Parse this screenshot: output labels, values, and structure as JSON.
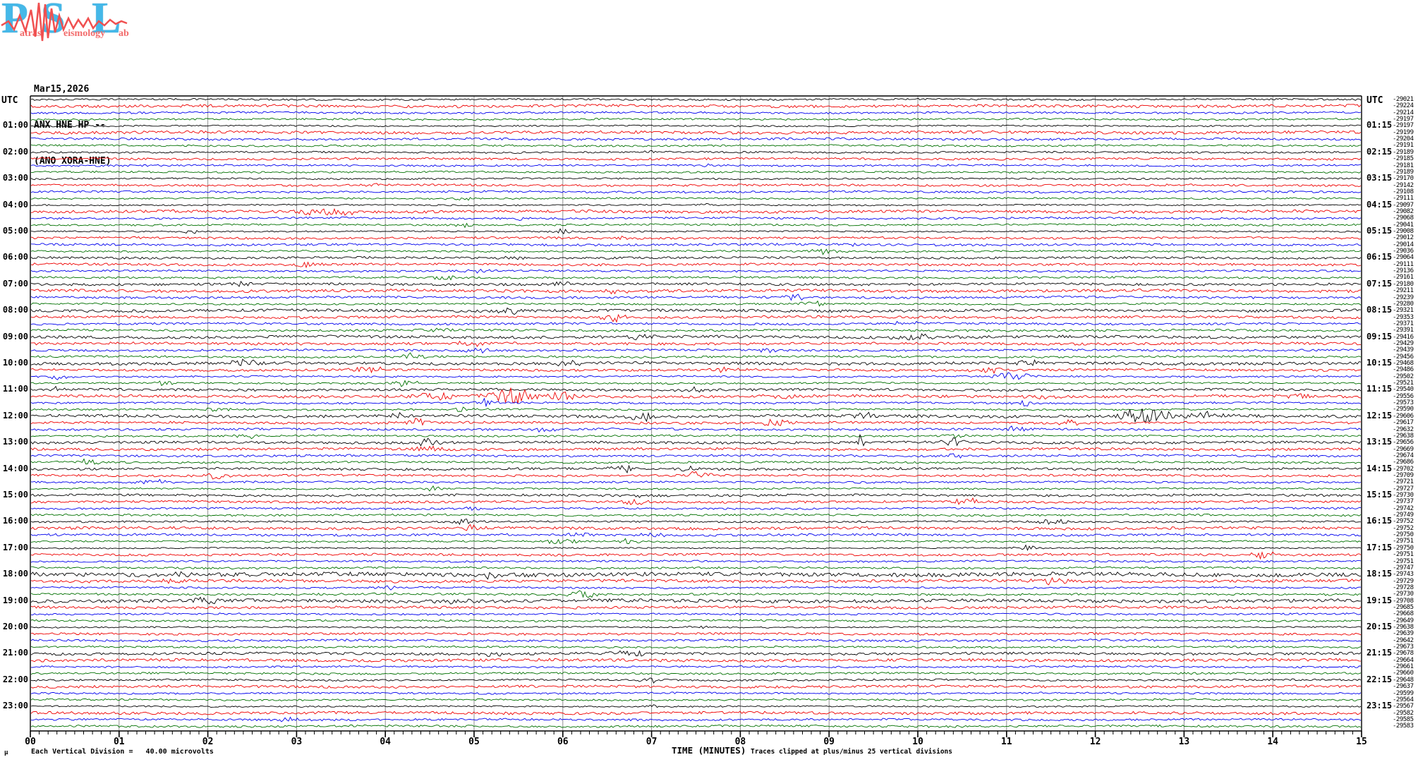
{
  "logo": {
    "letters": [
      "P",
      "S",
      "L"
    ],
    "word_fragments": [
      "atras",
      "eismology",
      "ab"
    ],
    "letter_color": "#45b8e8",
    "word_color": "#f26b6b",
    "trace_color": "#f05050"
  },
  "header": {
    "date": "Mar15,2026",
    "station_line": "ANX HNE HP --",
    "location_line": "(ANO XORA-HNE)",
    "utc_left": "UTC",
    "utc_right": "UTC"
  },
  "footer": {
    "micro_symbol": "µ",
    "scale_note": "Each Vertical Division =   40.00 microvolts",
    "axis_title": "TIME (MINUTES)",
    "clip_note": "Traces clipped at plus/minus 25 vertical divisions"
  },
  "chart_data": {
    "type": "line",
    "subtype": "helicorder-seismogram",
    "title": "ANX HNE HP -- (ANO XORA-HNE) Mar15,2026",
    "xlabel": "TIME (MINUTES)",
    "x_ticks": [
      "00",
      "01",
      "02",
      "03",
      "04",
      "05",
      "06",
      "07",
      "08",
      "09",
      "10",
      "11",
      "12",
      "13",
      "14",
      "15"
    ],
    "x_range_minutes": [
      0,
      15
    ],
    "minutes_per_row": 15,
    "rows": 96,
    "rows_per_hour": 4,
    "start_time": "00:00",
    "trace_color_cycle": [
      "#000000",
      "#ee0000",
      "#0000ee",
      "#007000"
    ],
    "grid_color": "#909090",
    "microvolts_per_division": 40.0,
    "clip_divisions": 25,
    "left_hour_labels": [
      "01:00",
      "02:00",
      "03:00",
      "04:00",
      "05:00",
      "06:00",
      "07:00",
      "08:00",
      "09:00",
      "10:00",
      "11:00",
      "12:00",
      "13:00",
      "14:00",
      "15:00",
      "16:00",
      "17:00",
      "18:00",
      "19:00",
      "20:00",
      "21:00",
      "22:00",
      "23:00"
    ],
    "right_hour_labels": [
      "01:15",
      "02:15",
      "03:15",
      "04:15",
      "05:15",
      "06:15",
      "07:15",
      "08:15",
      "09:15",
      "10:15",
      "11:15",
      "12:15",
      "13:15",
      "14:15",
      "15:15",
      "16:15",
      "17:15",
      "18:15",
      "19:15",
      "20:15",
      "21:15",
      "22:15",
      "23:15"
    ],
    "row_mean_values": [
      -29021,
      -29224,
      -29214,
      -29197,
      -29197,
      -29199,
      -29204,
      -29191,
      -29189,
      -29185,
      -29181,
      -29189,
      -29170,
      -29142,
      -29108,
      -29111,
      -29097,
      -29082,
      -29068,
      -29041,
      -29008,
      -29012,
      -29014,
      -29036,
      -29064,
      -29111,
      -29136,
      -29161,
      -29180,
      -29211,
      -29239,
      -29280,
      -29321,
      -29353,
      -29371,
      -29391,
      -29416,
      -29429,
      -29439,
      -29456,
      -29468,
      -29486,
      -29502,
      -29521,
      -29540,
      -29556,
      -29573,
      -29590,
      -29606,
      -29617,
      -29632,
      -29638,
      -29656,
      -29669,
      -29674,
      -29686,
      -29702,
      -29709,
      -29721,
      -29727,
      -29730,
      -29737,
      -29742,
      -29749,
      -29752,
      -29752,
      -29750,
      -29751,
      -29750,
      -29751,
      -29751,
      -29747,
      -29743,
      -29729,
      -29728,
      -29730,
      -29708,
      -29685,
      -29668,
      -29649,
      -29638,
      -29639,
      -29642,
      -29673,
      -29678,
      -29664,
      -29661,
      -29660,
      -29648,
      -29637,
      -29599,
      -29564,
      -29567,
      -29582,
      -29585,
      -29583
    ],
    "base_noise_amp_by_color": [
      1.1,
      1.7,
      1.4,
      1.3
    ],
    "noisy_rows": [
      [
        24,
        1.6
      ],
      [
        28,
        1.6
      ],
      [
        32,
        1.7
      ],
      [
        36,
        1.8
      ],
      [
        40,
        1.9
      ],
      [
        44,
        1.9
      ],
      [
        48,
        1.9
      ],
      [
        52,
        1.8
      ],
      [
        56,
        1.7
      ],
      [
        60,
        1.6
      ],
      [
        72,
        2.5
      ],
      [
        73,
        1.9
      ],
      [
        76,
        2.1
      ],
      [
        84,
        1.6
      ],
      [
        88,
        1.5
      ]
    ],
    "events": [
      [
        8,
        7.0,
        2.5,
        0.15
      ],
      [
        10,
        7.65,
        2.5,
        0.12
      ],
      [
        13,
        3.85,
        3.5,
        0.12
      ],
      [
        15,
        4.85,
        3.0,
        0.2
      ],
      [
        16,
        7.65,
        2.5,
        0.18
      ],
      [
        17,
        3.2,
        4.0,
        0.45
      ],
      [
        17,
        3.55,
        3.5,
        0.25
      ],
      [
        18,
        5.5,
        3.0,
        0.15
      ],
      [
        19,
        4.9,
        2.5,
        0.2
      ],
      [
        20,
        1.8,
        2.5,
        0.18
      ],
      [
        20,
        6.0,
        4.0,
        0.15
      ],
      [
        21,
        6.7,
        3.5,
        0.12
      ],
      [
        22,
        9.3,
        3.0,
        0.2
      ],
      [
        23,
        8.9,
        4.0,
        0.25
      ],
      [
        24,
        5.4,
        3.0,
        0.2
      ],
      [
        25,
        3.1,
        4.0,
        0.3
      ],
      [
        26,
        5.0,
        3.0,
        0.25
      ],
      [
        27,
        4.6,
        3.5,
        0.3
      ],
      [
        28,
        2.4,
        3.0,
        0.2
      ],
      [
        28,
        6.0,
        4.5,
        0.18
      ],
      [
        29,
        6.6,
        4.0,
        0.25
      ],
      [
        30,
        8.6,
        4.0,
        0.25
      ],
      [
        31,
        8.85,
        5.0,
        0.3
      ],
      [
        32,
        5.4,
        5.0,
        0.2
      ],
      [
        33,
        6.6,
        5.0,
        0.25
      ],
      [
        34,
        9.9,
        4.0,
        0.25
      ],
      [
        35,
        4.6,
        4.0,
        0.3
      ],
      [
        36,
        6.8,
        4.0,
        0.3
      ],
      [
        36,
        9.95,
        5.0,
        0.35
      ],
      [
        37,
        5.0,
        4.0,
        0.3
      ],
      [
        38,
        5.0,
        5.0,
        0.25
      ],
      [
        38,
        8.3,
        4.0,
        0.2
      ],
      [
        39,
        4.3,
        4.0,
        0.3
      ],
      [
        40,
        2.4,
        5.0,
        0.3
      ],
      [
        40,
        6.05,
        4.0,
        0.3
      ],
      [
        40,
        11.3,
        4.0,
        0.35
      ],
      [
        41,
        3.8,
        4.0,
        0.35
      ],
      [
        41,
        7.8,
        4.0,
        0.3
      ],
      [
        41,
        10.8,
        4.0,
        0.3
      ],
      [
        42,
        0.3,
        4.0,
        0.2
      ],
      [
        42,
        11.05,
        5.0,
        0.35
      ],
      [
        43,
        1.5,
        3.5,
        0.2
      ],
      [
        43,
        4.2,
        4.0,
        0.3
      ],
      [
        44,
        0.3,
        4.0,
        0.2
      ],
      [
        44,
        7.4,
        5.0,
        0.3
      ],
      [
        45,
        4.6,
        6.0,
        0.4
      ],
      [
        45,
        5.45,
        12.0,
        0.45
      ],
      [
        45,
        5.95,
        8.0,
        0.3
      ],
      [
        45,
        8.5,
        4.0,
        0.3
      ],
      [
        45,
        11.4,
        4.0,
        0.3
      ],
      [
        45,
        14.3,
        4.0,
        0.25
      ],
      [
        46,
        5.1,
        5.0,
        0.2
      ],
      [
        46,
        11.2,
        4.0,
        0.2
      ],
      [
        47,
        2.1,
        3.5,
        0.2
      ],
      [
        47,
        4.9,
        4.0,
        0.3
      ],
      [
        48,
        4.2,
        5.0,
        0.25
      ],
      [
        48,
        6.9,
        5.0,
        0.3
      ],
      [
        48,
        9.4,
        4.0,
        0.25
      ],
      [
        48,
        12.55,
        10.0,
        0.55
      ],
      [
        48,
        13.25,
        6.0,
        0.3
      ],
      [
        49,
        4.35,
        5.0,
        0.3
      ],
      [
        49,
        8.4,
        5.0,
        0.3
      ],
      [
        49,
        11.7,
        4.0,
        0.2
      ],
      [
        50,
        5.8,
        5.0,
        0.2
      ],
      [
        50,
        11.1,
        4.0,
        0.2
      ],
      [
        51,
        2.45,
        4.0,
        0.2
      ],
      [
        51,
        10.4,
        4.0,
        0.2
      ],
      [
        52,
        4.5,
        6.0,
        0.2
      ],
      [
        52,
        9.35,
        16.0,
        0.05
      ],
      [
        52,
        10.4,
        5.0,
        0.2
      ],
      [
        53,
        4.5,
        5.0,
        0.3
      ],
      [
        54,
        10.4,
        4.0,
        0.2
      ],
      [
        55,
        0.65,
        4.0,
        0.25
      ],
      [
        56,
        6.7,
        5.0,
        0.3
      ],
      [
        56,
        7.4,
        4.0,
        0.2
      ],
      [
        57,
        2.1,
        4.0,
        0.2
      ],
      [
        57,
        7.5,
        5.0,
        0.3
      ],
      [
        58,
        1.4,
        4.0,
        0.25
      ],
      [
        59,
        4.5,
        3.0,
        0.2
      ],
      [
        60,
        6.9,
        4.0,
        0.2
      ],
      [
        61,
        6.8,
        4.0,
        0.25
      ],
      [
        61,
        10.6,
        5.0,
        0.3
      ],
      [
        62,
        5.0,
        3.0,
        0.2
      ],
      [
        64,
        4.9,
        4.0,
        0.3
      ],
      [
        64,
        11.5,
        4.0,
        0.3
      ],
      [
        65,
        4.9,
        5.0,
        0.25
      ],
      [
        66,
        6.2,
        4.0,
        0.25
      ],
      [
        66,
        7.0,
        4.0,
        0.25
      ],
      [
        67,
        6.0,
        4.0,
        0.3
      ],
      [
        67,
        6.7,
        4.0,
        0.2
      ],
      [
        68,
        11.2,
        5.0,
        0.25
      ],
      [
        69,
        13.9,
        5.0,
        0.3
      ],
      [
        72,
        1.7,
        3.0,
        0.3
      ],
      [
        72,
        5.2,
        4.0,
        0.3
      ],
      [
        73,
        1.5,
        4.0,
        0.3
      ],
      [
        73,
        11.5,
        4.0,
        0.3
      ],
      [
        74,
        4.0,
        3.0,
        0.2
      ],
      [
        75,
        6.2,
        5.0,
        0.3
      ],
      [
        76,
        2.0,
        5.0,
        0.3
      ],
      [
        76,
        4.8,
        3.0,
        0.3
      ],
      [
        80,
        7.5,
        3.0,
        0.25
      ],
      [
        84,
        5.2,
        3.0,
        0.2
      ],
      [
        84,
        6.8,
        4.0,
        0.4
      ],
      [
        88,
        7.0,
        3.0,
        0.25
      ],
      [
        92,
        7.0,
        3.0,
        0.2
      ],
      [
        94,
        2.9,
        5.0,
        0.18
      ]
    ]
  }
}
